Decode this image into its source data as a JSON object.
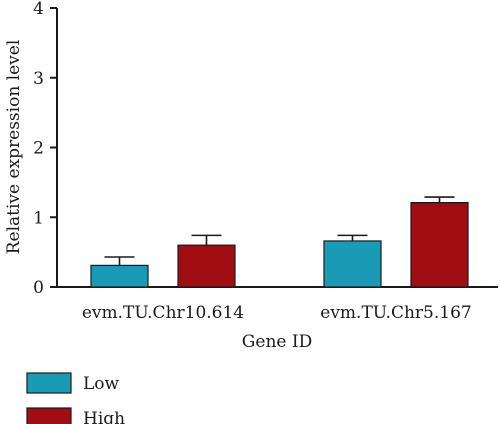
{
  "chart_data": {
    "type": "bar",
    "title": "",
    "xlabel": "Gene ID",
    "ylabel": "Relative expression level",
    "ylim": [
      0,
      4
    ],
    "yticks": [
      "0",
      "1",
      "2",
      "3",
      "4"
    ],
    "categories": [
      "evm.TU.Chr10.614",
      "evm.TU.Chr5.167"
    ],
    "series": [
      {
        "name": "Low",
        "color": "#1a9bb5",
        "values": [
          0.31,
          0.66
        ],
        "errors": [
          0.12,
          0.08
        ]
      },
      {
        "name": "High",
        "color": "#a00d12",
        "values": [
          0.6,
          1.21
        ],
        "errors": [
          0.14,
          0.08
        ]
      }
    ],
    "legend_position": "bottom-left",
    "grid": false
  }
}
